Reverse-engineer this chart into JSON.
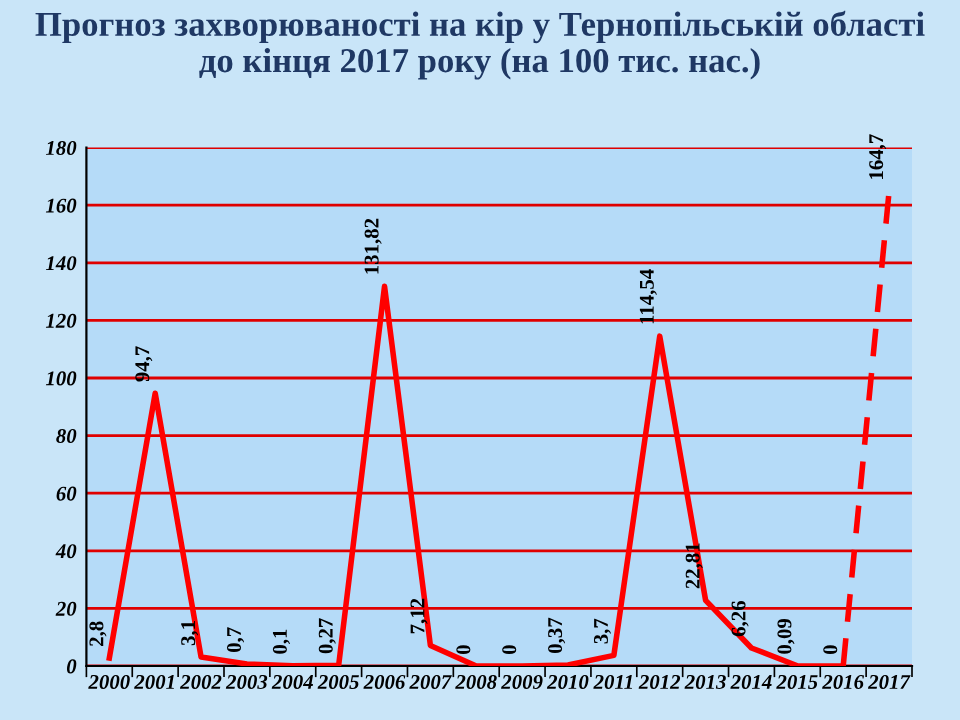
{
  "chart_data": {
    "type": "line",
    "title": "Прогноз захворюваності на кір у Тернопільській області\nдо кінця 2017 року (на 100 тис. нас.)",
    "categories": [
      "2000",
      "2001",
      "2002",
      "2003",
      "2004",
      "2005",
      "2006",
      "2007",
      "2008",
      "2009",
      "2010",
      "2011",
      "2012",
      "2013",
      "2014",
      "2015",
      "2016",
      "2017"
    ],
    "series": [
      {
        "color": "#ff0000",
        "line_style": "solid",
        "values": [
          2.8,
          94.7,
          3.1,
          0.7,
          0.1,
          0.27,
          131.82,
          7.12,
          0,
          0,
          0.37,
          3.7,
          114.54,
          22.81,
          6.26,
          0.09,
          0,
          null
        ],
        "value_labels": [
          "2,8",
          "94,7",
          "3,1",
          "0,7",
          "0,1",
          "0,27",
          "131,82",
          "7,12",
          "0",
          "0",
          "0,37",
          "3,7",
          "114,54",
          "22,81",
          "6,26",
          "0,09",
          "0",
          null
        ]
      },
      {
        "color": "#ff0000",
        "line_style": "dashed",
        "values": [
          null,
          null,
          null,
          null,
          null,
          null,
          null,
          null,
          null,
          null,
          null,
          null,
          null,
          null,
          null,
          null,
          0,
          164.7
        ],
        "value_labels": [
          null,
          null,
          null,
          null,
          null,
          null,
          null,
          null,
          null,
          null,
          null,
          null,
          null,
          null,
          null,
          null,
          null,
          "164,7"
        ]
      }
    ],
    "ylim": [
      0,
      180
    ],
    "yticks": [
      0,
      20,
      40,
      60,
      80,
      100,
      120,
      140,
      160,
      180
    ],
    "grid": "y",
    "marker": "none"
  }
}
